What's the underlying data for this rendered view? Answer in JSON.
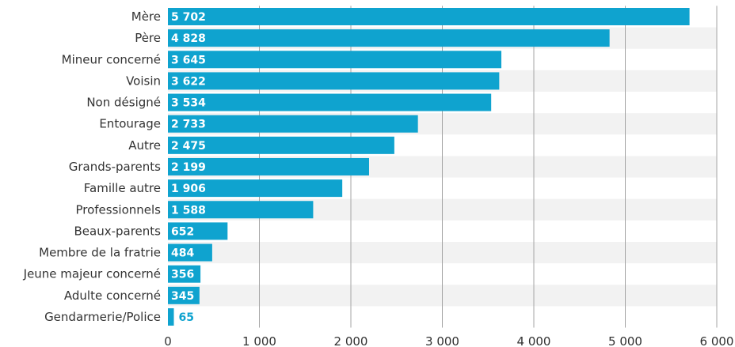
{
  "chart_data": {
    "type": "bar",
    "orientation": "horizontal",
    "categories": [
      "Mère",
      "Père",
      "Mineur concerné",
      "Voisin",
      "Non désigné",
      "Entourage",
      "Autre",
      "Grands-parents",
      "Famille autre",
      "Professionnels",
      "Beaux-parents",
      "Membre de la fratrie",
      "Jeune majeur concerné",
      "Adulte concerné",
      "Gendarmerie/Police"
    ],
    "values": [
      5702,
      4828,
      3645,
      3622,
      3534,
      2733,
      2475,
      2199,
      1906,
      1588,
      652,
      484,
      356,
      345,
      65
    ],
    "value_labels": [
      "5 702",
      "4 828",
      "3 645",
      "3 622",
      "3 534",
      "2 733",
      "2 475",
      "2 199",
      "1 906",
      "1 588",
      "652",
      "484",
      "356",
      "345",
      "65"
    ],
    "xlim": [
      0,
      6000
    ],
    "xticks": [
      0,
      1000,
      2000,
      3000,
      4000,
      5000,
      6000
    ],
    "xtick_labels": [
      "0",
      "1 000",
      "2 000",
      "3 000",
      "4 000",
      "5 000",
      "6 000"
    ],
    "title": "",
    "xlabel": "",
    "ylabel": "",
    "grid": "vertical",
    "legend": "none",
    "colors": {
      "bar": "#0fa3cf",
      "band": "#f2f2f2",
      "grid": "#a6a6a6",
      "label_inside": "#ffffff",
      "label_outside": "#0fa3cf"
    }
  }
}
